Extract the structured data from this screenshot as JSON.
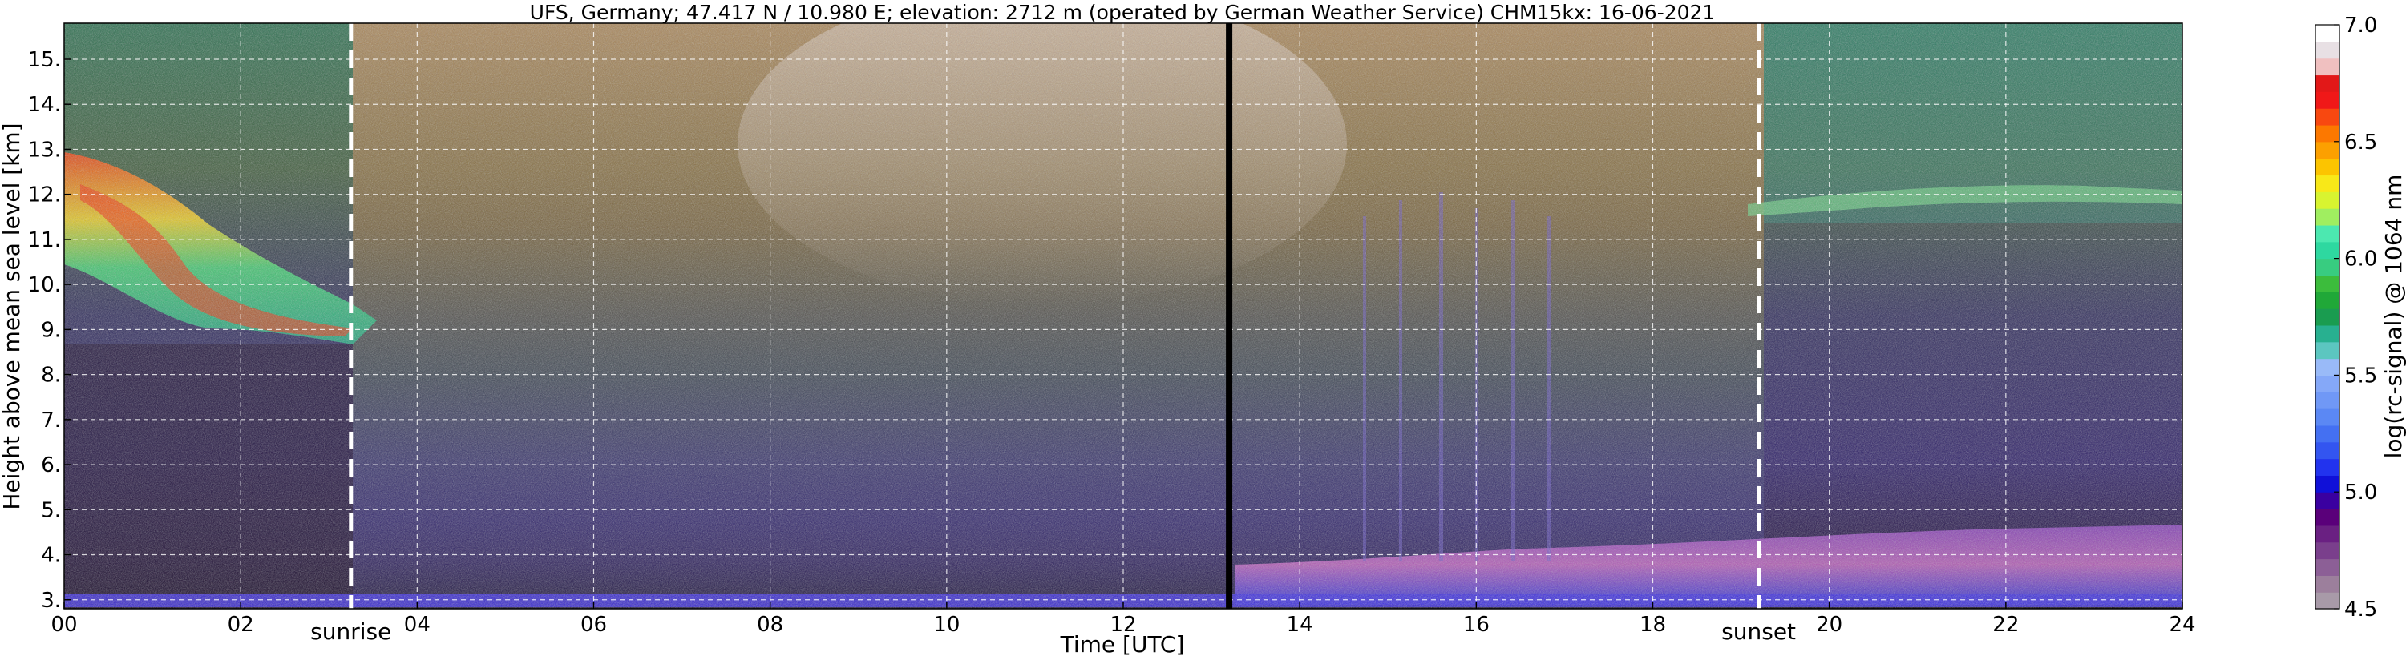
{
  "chart_data": {
    "type": "heatmap",
    "title": "UFS, Germany; 47.417 N / 10.980 E; elevation: 2712 m  (operated by German Weather Service)    CHM15kx: 16-06-2021",
    "xlabel": "Time [UTC]",
    "ylabel": "Height above mean sea level [km]",
    "xlim": [
      0,
      24
    ],
    "ylim": [
      2.8,
      15.8
    ],
    "x_ticks": [
      "00",
      "02",
      "04",
      "06",
      "08",
      "10",
      "12",
      "14",
      "16",
      "18",
      "20",
      "22",
      "24"
    ],
    "x_tick_values": [
      0,
      2,
      4,
      6,
      8,
      10,
      12,
      14,
      16,
      18,
      20,
      22,
      24
    ],
    "y_ticks": [
      "3.",
      "4.",
      "5.",
      "6.",
      "7.",
      "8.",
      "9.",
      "10.",
      "11.",
      "12.",
      "13.",
      "14.",
      "15."
    ],
    "y_tick_values": [
      3,
      4,
      5,
      6,
      7,
      8,
      9,
      10,
      11,
      12,
      13,
      14,
      15
    ],
    "grid": true,
    "events": [
      {
        "label": "sunrise",
        "time": 3.25
      },
      {
        "label": "sunset",
        "time": 19.2
      }
    ],
    "data_gap_time": 13.2,
    "colorbar": {
      "label": "log(rc-signal) @ 1064 nm",
      "range": [
        4.5,
        7.0
      ],
      "ticks": [
        "4.5",
        "5.0",
        "5.5",
        "6.0",
        "6.5",
        "7.0"
      ],
      "tick_values": [
        4.5,
        5.0,
        5.5,
        6.0,
        6.5,
        7.0
      ],
      "colors": [
        "#a89aa8",
        "#9c7f9c",
        "#8c5f96",
        "#7a3f8c",
        "#6a2082",
        "#5a007a",
        "#3a00a0",
        "#1010d8",
        "#2233ee",
        "#3355f0",
        "#4470f2",
        "#5b88f4",
        "#7098f6",
        "#85a8f8",
        "#99baf8",
        "#5cc6c0",
        "#28b090",
        "#1a9c50",
        "#20a838",
        "#3cbc3c",
        "#38cc80",
        "#2ed8a0",
        "#4ce8b0",
        "#a0ee60",
        "#d8f430",
        "#f8e818",
        "#fcc400",
        "#fca000",
        "#fc7800",
        "#f84810",
        "#f01818",
        "#e21818",
        "#f0c0c0",
        "#e8e0e4",
        "#ffffff"
      ]
    }
  }
}
